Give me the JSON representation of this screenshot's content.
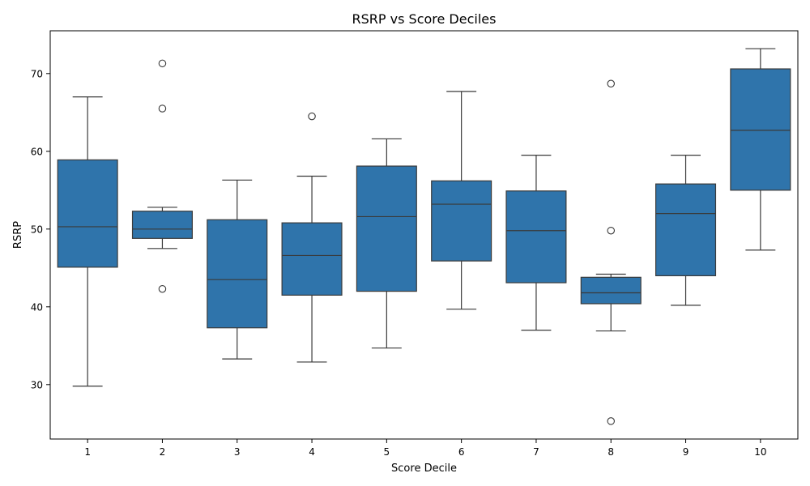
{
  "chart_data": {
    "type": "box",
    "title": "RSRP vs Score Deciles",
    "xlabel": "Score Decile",
    "ylabel": "RSRP",
    "ylim": [
      23,
      75.5
    ],
    "yticks": [
      30,
      40,
      50,
      60,
      70
    ],
    "grid": false,
    "box_color": "#2f74ab",
    "line_color": "#3a3a3a",
    "categories": [
      "1",
      "2",
      "3",
      "4",
      "5",
      "6",
      "7",
      "8",
      "9",
      "10"
    ],
    "boxes": [
      {
        "whislo": 29.8,
        "q1": 45.1,
        "med": 50.3,
        "q3": 58.9,
        "whishi": 67.0,
        "fliers": []
      },
      {
        "whislo": 47.5,
        "q1": 48.8,
        "med": 50.0,
        "q3": 52.3,
        "whishi": 52.8,
        "fliers": [
          71.3,
          65.5,
          42.3
        ]
      },
      {
        "whislo": 33.3,
        "q1": 37.3,
        "med": 43.5,
        "q3": 51.2,
        "whishi": 56.3,
        "fliers": []
      },
      {
        "whislo": 32.9,
        "q1": 41.5,
        "med": 46.6,
        "q3": 50.8,
        "whishi": 56.8,
        "fliers": [
          64.5
        ]
      },
      {
        "whislo": 34.7,
        "q1": 42.0,
        "med": 51.6,
        "q3": 58.1,
        "whishi": 61.6,
        "fliers": []
      },
      {
        "whislo": 39.7,
        "q1": 45.9,
        "med": 53.2,
        "q3": 56.2,
        "whishi": 67.7,
        "fliers": []
      },
      {
        "whislo": 37.0,
        "q1": 43.1,
        "med": 49.8,
        "q3": 54.9,
        "whishi": 59.5,
        "fliers": []
      },
      {
        "whislo": 36.9,
        "q1": 40.4,
        "med": 41.8,
        "q3": 43.8,
        "whishi": 44.2,
        "fliers": [
          68.7,
          49.8,
          25.3
        ]
      },
      {
        "whislo": 40.2,
        "q1": 44.0,
        "med": 52.0,
        "q3": 55.8,
        "whishi": 59.5,
        "fliers": []
      },
      {
        "whislo": 47.3,
        "q1": 55.0,
        "med": 62.7,
        "q3": 70.6,
        "whishi": 73.2,
        "fliers": []
      }
    ]
  }
}
